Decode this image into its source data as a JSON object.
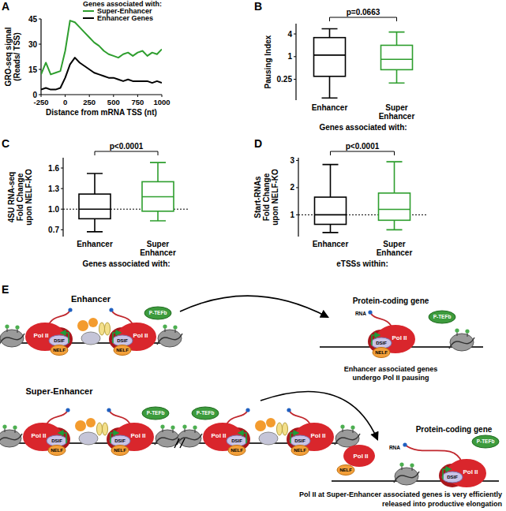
{
  "chart_data": [
    {
      "panel": "A",
      "type": "line",
      "legend_title": "Genes associated with:",
      "legend": "top-right",
      "xlabel": "Distance from mRNA TSS (nt)",
      "ylabel": [
        "GRO-seq signal",
        "(Reads/ TSS)"
      ],
      "x": [
        -250,
        -200,
        -150,
        -100,
        -50,
        0,
        50,
        100,
        150,
        200,
        250,
        300,
        350,
        400,
        450,
        500,
        550,
        600,
        650,
        700,
        750,
        800,
        850,
        900,
        950,
        1000
      ],
      "series": [
        {
          "name": "Super-Enhancer",
          "color": "#2e9e2e",
          "values": [
            12,
            19,
            12,
            13,
            14,
            26,
            44,
            43,
            40,
            37,
            34,
            31,
            29,
            26,
            24,
            23,
            22,
            24,
            25,
            23,
            25,
            26,
            23,
            25,
            24,
            27
          ]
        },
        {
          "name": "Enhancer Genes",
          "color": "#000000",
          "values": [
            3,
            4,
            3,
            3,
            4,
            10,
            18,
            22,
            19,
            17,
            15,
            13,
            12,
            11,
            10,
            10,
            9,
            8,
            9,
            8,
            8,
            8,
            8,
            7,
            8,
            7
          ]
        }
      ],
      "xlim": [
        -250,
        1000
      ],
      "xticks": [
        -250,
        0,
        250,
        500,
        750,
        1000
      ],
      "ylim": [
        0,
        45
      ],
      "yticks": [
        0,
        15,
        30,
        45
      ]
    },
    {
      "panel": "B",
      "type": "box",
      "categories": [
        "Enhancer",
        "Super Enhancer"
      ],
      "colors": [
        "#000000",
        "#2e9e2e"
      ],
      "stats": {
        "whisker_low": [
          0.08,
          0.2
        ],
        "q1": [
          0.3,
          0.45
        ],
        "median": [
          1.1,
          0.85
        ],
        "q3": [
          3.2,
          2.0
        ],
        "whisker_high": [
          5.5,
          4.5
        ]
      },
      "ylabel": [
        "Pausing Index"
      ],
      "xlabel": "Genes associated with:",
      "annotation": "p=0.0663",
      "log": "y",
      "ylim": [
        0.07,
        7.5
      ],
      "yticks": [
        0.25,
        1,
        4
      ]
    },
    {
      "panel": "C",
      "type": "box",
      "categories": [
        "Enhancer",
        "Super Enhancer"
      ],
      "colors": [
        "#000000",
        "#2e9e2e"
      ],
      "stats": {
        "whisker_low": [
          0.67,
          0.83
        ],
        "q1": [
          0.86,
          0.97
        ],
        "median": [
          1.0,
          1.18
        ],
        "q3": [
          1.22,
          1.4
        ],
        "whisker_high": [
          1.52,
          1.68
        ]
      },
      "ylabel": [
        "4SU RNA-seq",
        "Fold Change",
        "upon NELF-KO"
      ],
      "xlabel": "Genes associated with:",
      "annotation": "p<0.0001",
      "hline": 1,
      "ylim": [
        0.6,
        1.75
      ],
      "yticks": [
        0.7,
        {
          "value": 1,
          "label": "1.0"
        },
        1.3,
        1.6
      ]
    },
    {
      "panel": "D",
      "type": "box",
      "categories": [
        "Enhancer",
        "Super Enhancer"
      ],
      "colors": [
        "#000000",
        "#2e9e2e"
      ],
      "stats": {
        "whisker_low": [
          0.35,
          0.45
        ],
        "q1": [
          0.65,
          0.8
        ],
        "median": [
          1.0,
          1.2
        ],
        "q3": [
          1.65,
          1.8
        ],
        "whisker_high": [
          2.85,
          2.95
        ]
      },
      "ylabel": [
        "Start-RNAs",
        "Fold Change",
        "upon NELF-KO"
      ],
      "xlabel": "eTSSs within:",
      "annotation": "p<0.0001",
      "hline": 1,
      "ylim": [
        0.2,
        3.1
      ],
      "yticks": [
        1,
        2,
        3
      ]
    }
  ],
  "diagram": {
    "panel": "E",
    "components": [
      "P-TEFb",
      "DSIF",
      "NELF",
      "Pol II",
      "RNA"
    ],
    "sections": [
      {
        "source": "Enhancer",
        "target": "Protein-coding gene",
        "caption": [
          "Enhancer associated genes",
          "undergo Pol II pausing"
        ]
      },
      {
        "source": "Super-Enhancer",
        "target": "Protein-coding gene",
        "caption": [
          "Pol II at Super-Enhancer associated genes is very efficiently",
          "released into productive elongation"
        ]
      }
    ]
  }
}
